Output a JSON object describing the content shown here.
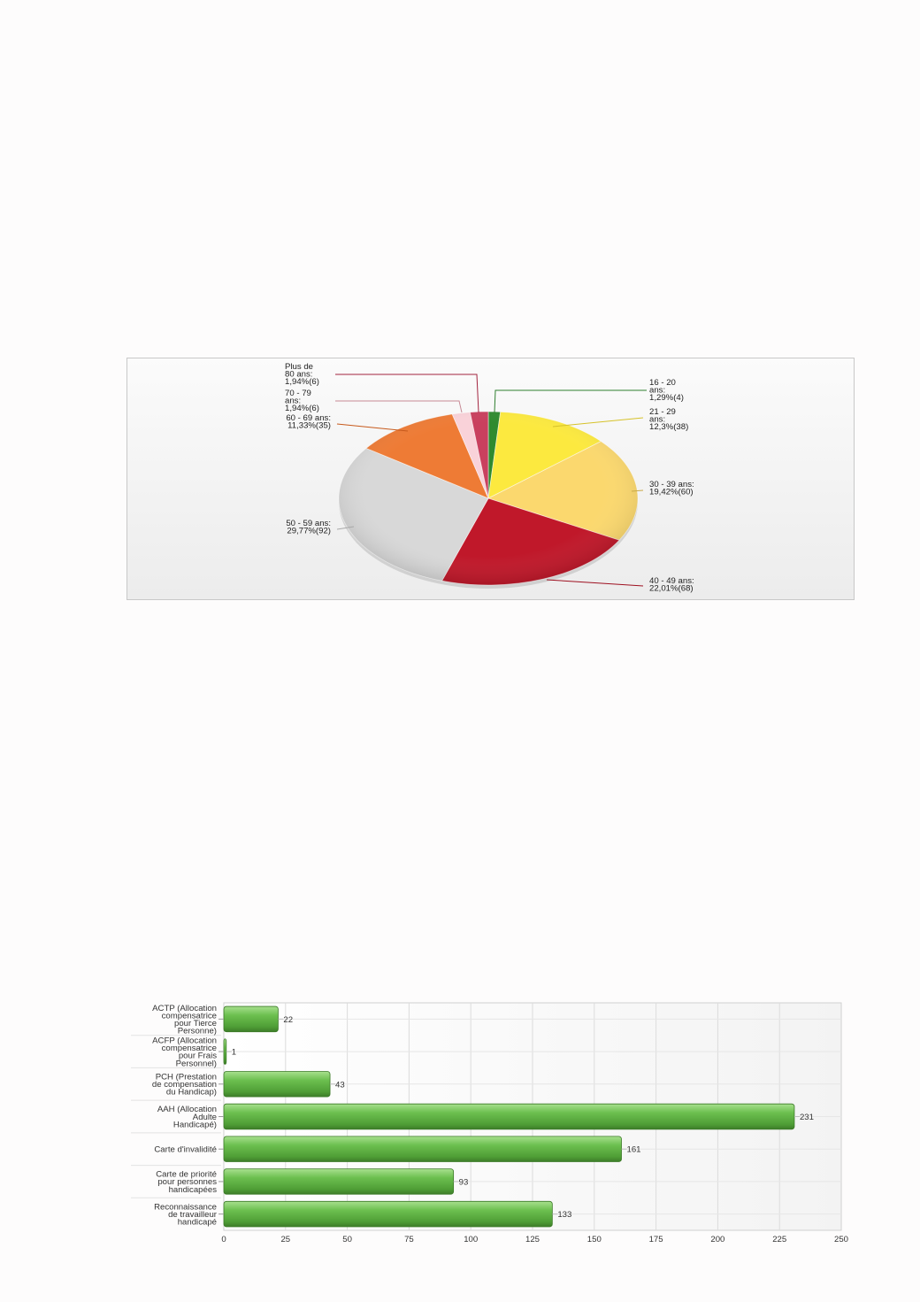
{
  "chart_data": [
    {
      "type": "pie",
      "start_angle_deg": -90,
      "direction": "clockwise",
      "slices": [
        {
          "label": [
            "16 - 20",
            "ans:",
            "1,29%(4)"
          ],
          "count": 4,
          "percent": 1.29,
          "color": "#2f8a2f",
          "line_color": "#2f7f2f"
        },
        {
          "label": [
            "21 - 29",
            "ans:",
            "12,3%(38)"
          ],
          "count": 38,
          "percent": 12.3,
          "color": "#fce93f",
          "line_color": "#d6c22a"
        },
        {
          "label": [
            "30 - 39 ans:",
            "19,42%(60)"
          ],
          "count": 60,
          "percent": 19.42,
          "color": "#fbd86e",
          "line_color": "#c9a948"
        },
        {
          "label": [
            "40 - 49 ans:",
            "22,01%(68)"
          ],
          "count": 68,
          "percent": 22.01,
          "color": "#c0182a",
          "line_color": "#9e1020"
        },
        {
          "label": [
            "50 - 59 ans:",
            "29,77%(92)"
          ],
          "count": 92,
          "percent": 29.77,
          "color": "#d8d8d8",
          "line_color": "#a8a8a8"
        },
        {
          "label": [
            "60 - 69 ans:",
            "11,33%(35)"
          ],
          "count": 35,
          "percent": 11.33,
          "color": "#ee7b35",
          "line_color": "#c75a1c"
        },
        {
          "label": [
            "70 - 79",
            "ans:",
            "1,94%(6)"
          ],
          "count": 6,
          "percent": 1.94,
          "color": "#f9d2d9",
          "line_color": "#c78a96"
        },
        {
          "label": [
            "Plus de",
            "80 ans:",
            "1,94%(6)"
          ],
          "count": 6,
          "percent": 1.94,
          "color": "#c9405e",
          "line_color": "#a3243f"
        }
      ]
    },
    {
      "type": "bar",
      "orientation": "horizontal",
      "categories": [
        [
          "ACTP (Allocation",
          "compensatrice",
          "pour Tierce",
          "Personne)"
        ],
        [
          "ACFP (Allocation",
          "compensatrice",
          "pour Frais",
          "Personnel)"
        ],
        [
          "PCH (Prestation",
          "de compensation",
          "du Handicap)"
        ],
        [
          "AAH (Allocation",
          "Adulte",
          "Handicapé)"
        ],
        [
          "Carte d'invalidité"
        ],
        [
          "Carte de priorité",
          "pour personnes",
          "handicapées"
        ],
        [
          "Reconnaissance",
          "de travailleur",
          "handicapé"
        ]
      ],
      "values": [
        22,
        1,
        43,
        231,
        161,
        93,
        133
      ],
      "xlim": [
        0,
        250
      ],
      "xticks": [
        "0",
        "25",
        "50",
        "75",
        "100",
        "125",
        "150",
        "175",
        "200",
        "225",
        "250"
      ],
      "grid": true,
      "bar_color": "#6cbf4f"
    }
  ]
}
